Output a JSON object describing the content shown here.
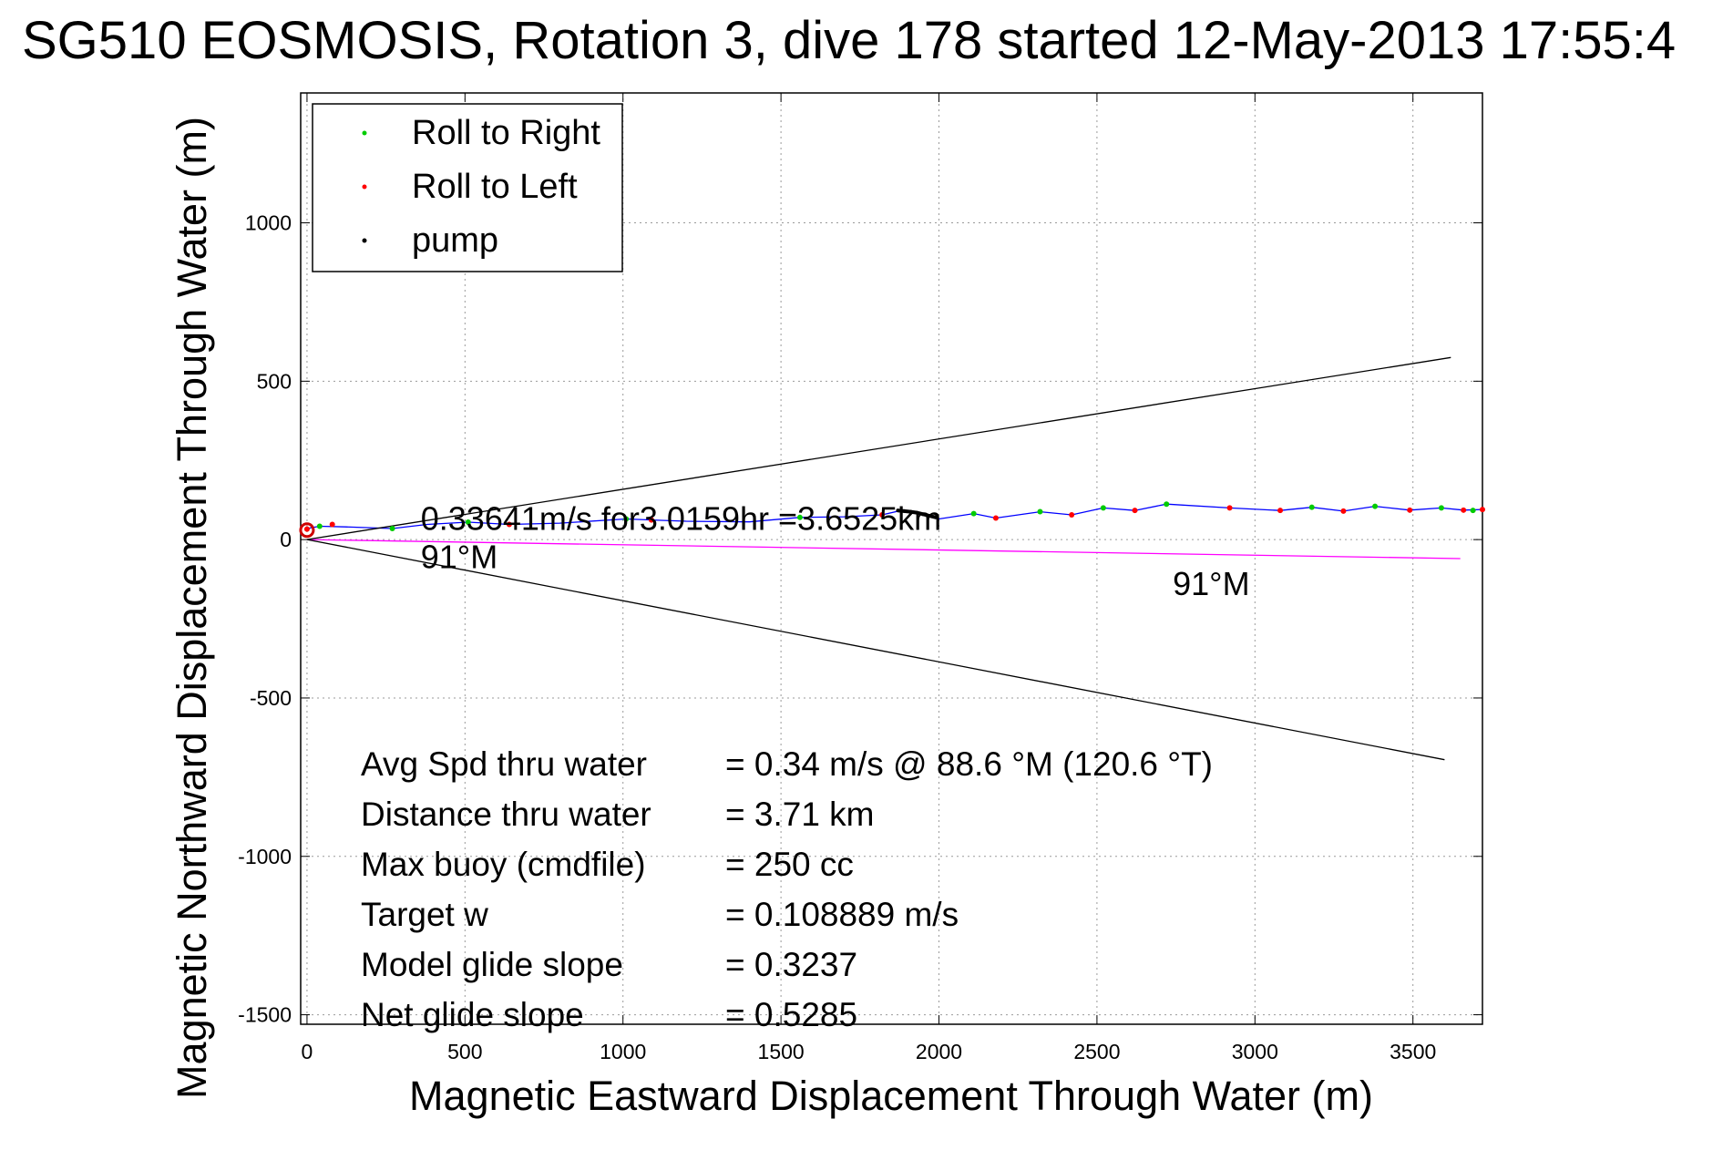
{
  "chart_data": {
    "type": "scatter",
    "title": "SG510 EOSMOSIS, Rotation 3, dive 178 started 12-May-2013 17:55:4",
    "xlabel": "Magnetic Eastward Displacement Through Water (m)",
    "ylabel": "Magnetic Northward Displacement Through Water (m)",
    "xlim": [
      -20,
      3720
    ],
    "ylim": [
      -1530,
      1410
    ],
    "xticks": [
      0,
      500,
      1000,
      1500,
      2000,
      2500,
      3000,
      3500
    ],
    "yticks": [
      -1500,
      -1000,
      -500,
      0,
      500,
      1000
    ],
    "xtick_labels": [
      "0",
      "500",
      "1000",
      "1500",
      "2000",
      "2500",
      "3000",
      "3500"
    ],
    "ytick_labels": [
      "-1500",
      "-1000",
      "-500",
      "0",
      "500",
      "1000"
    ],
    "grid": true,
    "legend_position": "top-left",
    "legend": [
      {
        "name": "Roll to Right",
        "color": "#00cc00"
      },
      {
        "name": "Roll to Left",
        "color": "#ff0000"
      },
      {
        "name": "pump",
        "color": "#000000"
      }
    ],
    "series": [
      {
        "name": "Roll to Right",
        "color": "#00cc00",
        "points": [
          [
            40,
            42
          ],
          [
            270,
            35
          ],
          [
            510,
            55
          ],
          [
            1010,
            65
          ],
          [
            1560,
            70
          ],
          [
            2110,
            82
          ],
          [
            2320,
            88
          ],
          [
            2520,
            100
          ],
          [
            2720,
            112
          ],
          [
            3180,
            102
          ],
          [
            3380,
            105
          ],
          [
            3590,
            100
          ],
          [
            3690,
            92
          ]
        ]
      },
      {
        "name": "Roll to Left",
        "color": "#ff0000",
        "points": [
          [
            0,
            33
          ],
          [
            80,
            48
          ],
          [
            640,
            48
          ],
          [
            1090,
            62
          ],
          [
            1820,
            78
          ],
          [
            2180,
            68
          ],
          [
            2420,
            78
          ],
          [
            2620,
            92
          ],
          [
            2920,
            100
          ],
          [
            3080,
            92
          ],
          [
            3280,
            90
          ],
          [
            3490,
            93
          ],
          [
            3660,
            93
          ],
          [
            3720,
            95
          ]
        ]
      },
      {
        "name": "pump",
        "color": "#000000",
        "points": [
          [
            1870,
            92
          ],
          [
            1890,
            90
          ],
          [
            1910,
            88
          ],
          [
            1930,
            85
          ],
          [
            1950,
            80
          ],
          [
            1970,
            75
          ],
          [
            1990,
            70
          ]
        ]
      }
    ],
    "lines": [
      {
        "name": "track",
        "color": "#0000ff",
        "points": [
          [
            0,
            35
          ],
          [
            40,
            42
          ],
          [
            120,
            40
          ],
          [
            270,
            35
          ],
          [
            380,
            48
          ],
          [
            510,
            55
          ],
          [
            640,
            48
          ],
          [
            800,
            52
          ],
          [
            1010,
            65
          ],
          [
            1090,
            62
          ],
          [
            1200,
            58
          ],
          [
            1400,
            56
          ],
          [
            1560,
            70
          ],
          [
            1700,
            72
          ],
          [
            1820,
            78
          ],
          [
            1880,
            92
          ],
          [
            1950,
            80
          ],
          [
            2000,
            65
          ],
          [
            2110,
            82
          ],
          [
            2180,
            68
          ],
          [
            2320,
            88
          ],
          [
            2420,
            78
          ],
          [
            2520,
            100
          ],
          [
            2620,
            92
          ],
          [
            2720,
            112
          ],
          [
            2920,
            100
          ],
          [
            3080,
            92
          ],
          [
            3180,
            102
          ],
          [
            3280,
            90
          ],
          [
            3380,
            105
          ],
          [
            3490,
            93
          ],
          [
            3590,
            100
          ],
          [
            3660,
            93
          ],
          [
            3720,
            95
          ]
        ]
      },
      {
        "name": "heading-line",
        "color": "#ff00ff",
        "points": [
          [
            0,
            0
          ],
          [
            3650,
            -60
          ]
        ]
      },
      {
        "name": "upper-bound",
        "color": "#000000",
        "points": [
          [
            0,
            0
          ],
          [
            3620,
            575
          ]
        ]
      },
      {
        "name": "lower-bound",
        "color": "#000000",
        "points": [
          [
            0,
            0
          ],
          [
            3600,
            -695
          ]
        ]
      }
    ],
    "annotations": [
      {
        "text": "0.33641m/s for3.0159hr =3.6525km",
        "x": 360,
        "y": 30
      },
      {
        "text": "91°M",
        "x": 360,
        "y": -90
      },
      {
        "text": "91°M",
        "x": 2740,
        "y": -175
      }
    ],
    "stats": [
      {
        "label": "Avg Spd thru water",
        "value": "=  0.34 m/s @  88.6 °M (120.6 °T)"
      },
      {
        "label": "Distance thru water",
        "value": "=  3.71 km"
      },
      {
        "label": "Max buoy (cmdfile)",
        "value": "= 250 cc"
      },
      {
        "label": "Target w",
        "value": "= 0.108889 m/s"
      },
      {
        "label": "Model glide slope",
        "value": "= 0.3237"
      },
      {
        "label": "Net glide slope",
        "value": "= 0.5285"
      }
    ]
  }
}
